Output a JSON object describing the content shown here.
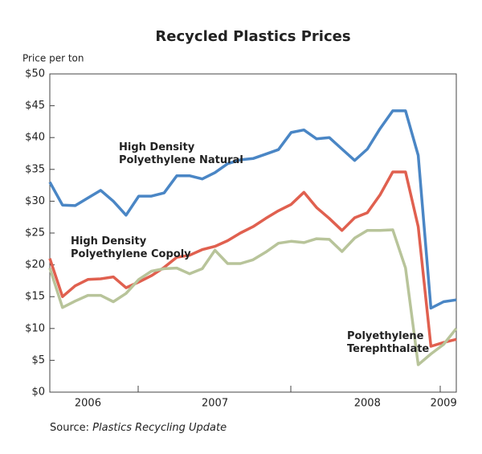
{
  "chart_data": {
    "type": "line",
    "title": "Recycled Plastics Prices",
    "y_label": "Price per ton",
    "source_prefix": "Source:",
    "source": "Plastics Recycling Update",
    "categories": [
      null,
      null,
      null,
      "2006",
      null,
      null,
      null,
      null,
      null,
      null,
      null,
      null,
      null,
      "2007",
      null,
      null,
      null,
      null,
      null,
      null,
      null,
      null,
      null,
      null,
      null,
      "2008",
      null,
      null,
      null,
      null,
      null,
      "2009",
      null
    ],
    "ylim": [
      0,
      50
    ],
    "yticks": [
      {
        "value": 0,
        "label": "$0"
      },
      {
        "value": 5,
        "label": "$5"
      },
      {
        "value": 10,
        "label": "$10"
      },
      {
        "value": 15,
        "label": "$15"
      },
      {
        "value": 20,
        "label": "$20"
      },
      {
        "value": 25,
        "label": "$25"
      },
      {
        "value": 30,
        "label": "$30"
      },
      {
        "value": 35,
        "label": "$35"
      },
      {
        "value": 40,
        "label": "$40"
      },
      {
        "value": 45,
        "label": "$45"
      },
      {
        "value": 50,
        "label": "$50"
      }
    ],
    "grid": false,
    "series": [
      {
        "name": "High Density\nPolyethylene Natural",
        "color": "#4a86c5",
        "values": [
          33,
          29.4,
          29.3,
          30.5,
          31.7,
          30,
          27.8,
          30.8,
          30.8,
          31.3,
          34,
          34,
          33.5,
          34.5,
          35.9,
          36.5,
          36.7,
          37.4,
          38.1,
          40.8,
          41.2,
          39.8,
          40,
          38.2,
          36.4,
          38.2,
          41.4,
          44.2,
          44.2,
          37.2,
          13.2,
          14.2,
          14.5
        ]
      },
      {
        "name": "High Density\nPolyethylene Copoly",
        "color": "#e0604f",
        "values": [
          21,
          15,
          16.7,
          17.7,
          17.8,
          18.1,
          16.4,
          17.3,
          18.3,
          19.6,
          21.2,
          21.5,
          22.4,
          22.9,
          23.8,
          25,
          26,
          27.3,
          28.5,
          29.5,
          31.4,
          29,
          27.3,
          25.4,
          27.4,
          28.2,
          31,
          34.6,
          34.6,
          26,
          7.2,
          7.8,
          8.3
        ]
      },
      {
        "name": "Polyethylene\nTerephthalate",
        "color": "#b8c49a",
        "values": [
          19.5,
          13.3,
          14.3,
          15.2,
          15.2,
          14.2,
          15.5,
          17.7,
          19,
          19.4,
          19.5,
          18.6,
          19.4,
          22.3,
          20.2,
          20.2,
          20.8,
          22,
          23.4,
          23.7,
          23.5,
          24.1,
          24,
          22.1,
          24.2,
          25.4,
          25.4,
          25.5,
          19.5,
          4.3,
          6,
          7.5,
          10
        ]
      }
    ]
  }
}
